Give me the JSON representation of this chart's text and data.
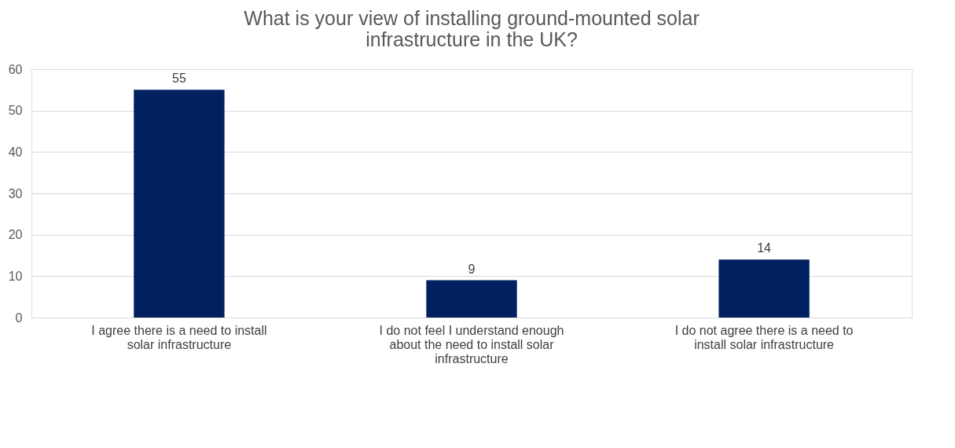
{
  "chart_data": {
    "type": "bar",
    "title": "What is your view of installing ground-mounted solar infrastructure in the UK?",
    "categories": [
      "I agree there is a need to install solar infrastructure",
      "I do not feel I understand enough about the need to install solar infrastructure",
      "I do not agree there is a need to install solar infrastructure"
    ],
    "series": [
      {
        "color": "#002060",
        "values": [
          55,
          9,
          14
        ]
      }
    ],
    "ylim": [
      0,
      60
    ],
    "yticks": [
      0,
      10,
      20,
      30,
      40,
      50,
      60
    ],
    "grid": "y",
    "data_labels": true
  }
}
